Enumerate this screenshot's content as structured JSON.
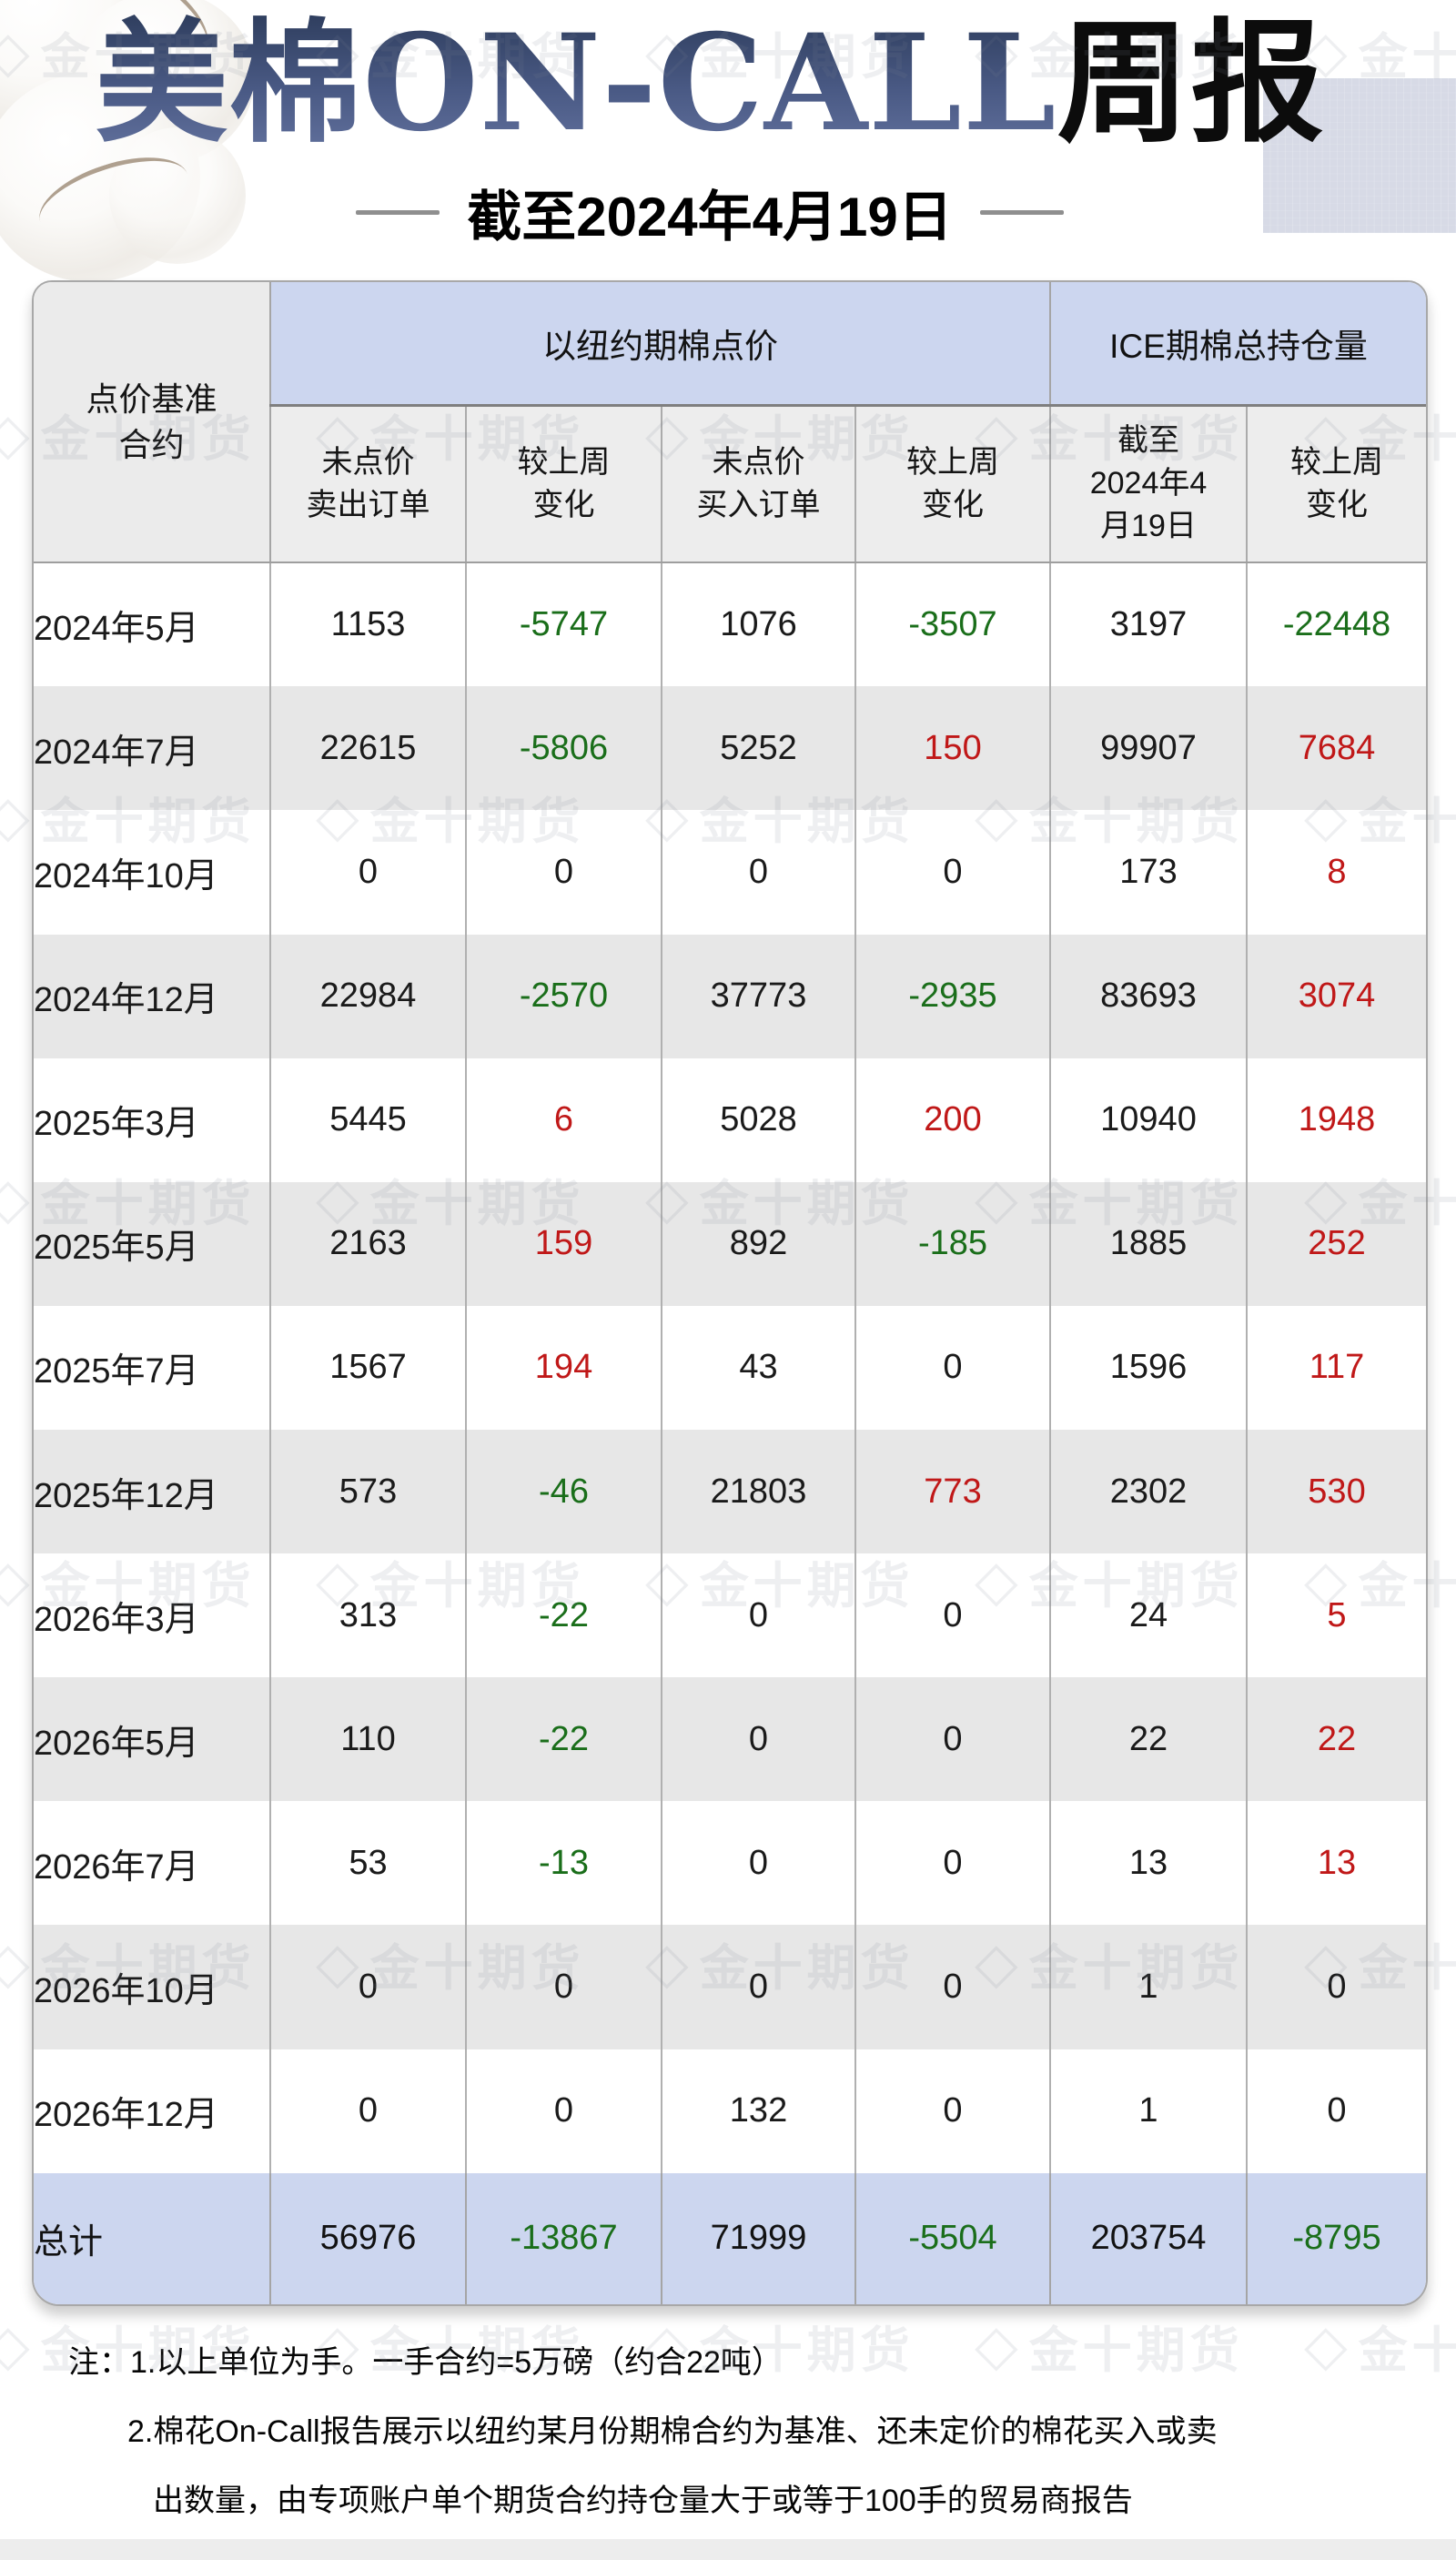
{
  "title": {
    "main_blue": "美棉ON-CALL",
    "main_black": "周报",
    "subtitle": "截至2024年4月19日"
  },
  "watermark": {
    "logo_glyph": "◇",
    "text": "金十期货"
  },
  "colors": {
    "positive_red": "#c01818",
    "negative_green": "#1a6e1a",
    "header_blue": "#ccd6ef",
    "row_alt_gray": "#e7e7e7",
    "header_gray": "#ebebeb"
  },
  "table": {
    "corner_header": "点价基准\n合约",
    "group_headers": [
      "以纽约期棉点价",
      "ICE期棉总持仓量"
    ],
    "sub_headers": [
      "未点价\n卖出订单",
      "较上周\n变化",
      "未点价\n买入订单",
      "较上周\n变化",
      "截至\n2024年4\n月19日",
      "较上周\n变化"
    ],
    "rows": [
      {
        "label": "2024年5月",
        "values": [
          1153,
          -5747,
          1076,
          -3507,
          3197,
          -22448
        ]
      },
      {
        "label": "2024年7月",
        "values": [
          22615,
          -5806,
          5252,
          150,
          99907,
          7684
        ]
      },
      {
        "label": "2024年10月",
        "values": [
          0,
          0,
          0,
          0,
          173,
          8
        ]
      },
      {
        "label": "2024年12月",
        "values": [
          22984,
          -2570,
          37773,
          -2935,
          83693,
          3074
        ]
      },
      {
        "label": "2025年3月",
        "values": [
          5445,
          6,
          5028,
          200,
          10940,
          1948
        ]
      },
      {
        "label": "2025年5月",
        "values": [
          2163,
          159,
          892,
          -185,
          1885,
          252
        ]
      },
      {
        "label": "2025年7月",
        "values": [
          1567,
          194,
          43,
          0,
          1596,
          117
        ]
      },
      {
        "label": "2025年12月",
        "values": [
          573,
          -46,
          21803,
          773,
          2302,
          530
        ]
      },
      {
        "label": "2026年3月",
        "values": [
          313,
          -22,
          0,
          0,
          24,
          5
        ]
      },
      {
        "label": "2026年5月",
        "values": [
          110,
          -22,
          0,
          0,
          22,
          22
        ]
      },
      {
        "label": "2026年7月",
        "values": [
          53,
          -13,
          0,
          0,
          13,
          13
        ]
      },
      {
        "label": "2026年10月",
        "values": [
          0,
          0,
          0,
          0,
          1,
          0
        ]
      },
      {
        "label": "2026年12月",
        "values": [
          0,
          0,
          132,
          0,
          1,
          0
        ]
      }
    ],
    "total": {
      "label": "总计",
      "values": [
        56976,
        -13867,
        71999,
        -5504,
        203754,
        -8795
      ]
    }
  },
  "notes": [
    "注：1.以上单位为手。一手合约=5万磅（约合22吨）",
    "2.棉花On-Call报告展示以纽约某月份期棉合约为基准、还未定价的棉花买入或卖",
    "出数量，由专项账户单个期货合约持仓量大于或等于100手的贸易商报告"
  ]
}
